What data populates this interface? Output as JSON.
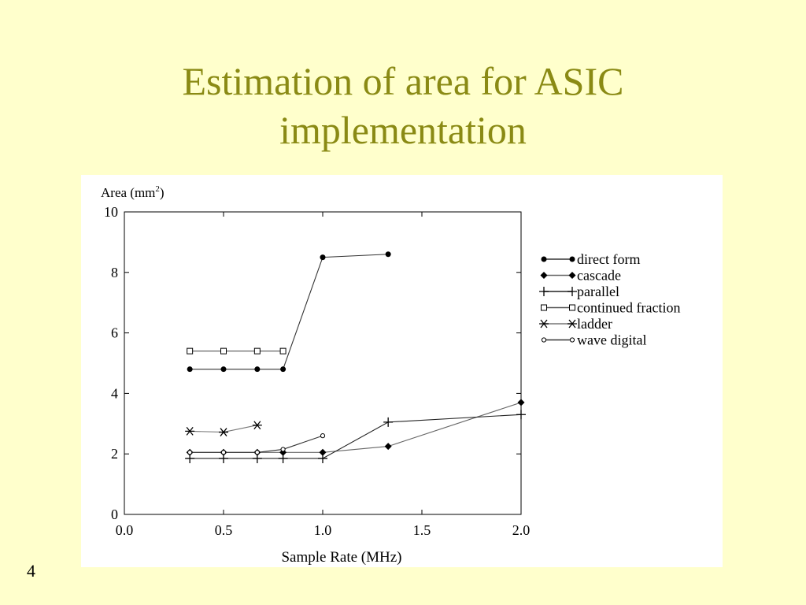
{
  "slide": {
    "title_line1": "Estimation of area for ASIC",
    "title_line2": "implementation",
    "page_number": "4",
    "title_color": "#8a8a14",
    "background_color": "#ffffcc"
  },
  "chart_data": {
    "type": "line",
    "title": "",
    "xlabel": "Sample Rate (MHz)",
    "ylabel": "Area (mm",
    "ylabel_superscript": "2",
    "ylabel_suffix": ")",
    "xlim": [
      0,
      2
    ],
    "ylim": [
      0,
      10
    ],
    "xticks": [
      0,
      0.5,
      1,
      1.5,
      2
    ],
    "xtick_labels": [
      "0.0",
      "0.5",
      "1.0",
      "1.5",
      "2.0"
    ],
    "yticks": [
      0,
      2,
      4,
      6,
      8,
      10
    ],
    "ytick_labels": [
      "0",
      "2",
      "4",
      "6",
      "8",
      "10"
    ],
    "grid": false,
    "legend_position": "right",
    "series": [
      {
        "name": "direct form",
        "marker": "filled-circle",
        "color": "#333333",
        "x": [
          0.33,
          0.5,
          0.67,
          0.8,
          1.0,
          1.33
        ],
        "y": [
          4.8,
          4.8,
          4.8,
          4.8,
          8.5,
          8.6
        ]
      },
      {
        "name": "cascade",
        "marker": "filled-diamond",
        "color": "#666666",
        "x": [
          0.33,
          0.5,
          0.67,
          0.8,
          1.0,
          1.33,
          2.0
        ],
        "y": [
          2.05,
          2.05,
          2.05,
          2.05,
          2.05,
          2.25,
          3.7
        ]
      },
      {
        "name": "parallel",
        "marker": "plus",
        "color": "#222222",
        "x": [
          0.33,
          0.5,
          0.67,
          0.8,
          1.0,
          1.33,
          2.0
        ],
        "y": [
          1.85,
          1.85,
          1.85,
          1.85,
          1.85,
          3.05,
          3.3
        ]
      },
      {
        "name": "continued fraction",
        "marker": "open-square",
        "color": "#555555",
        "x": [
          0.33,
          0.5,
          0.67,
          0.8
        ],
        "y": [
          5.4,
          5.4,
          5.4,
          5.4
        ]
      },
      {
        "name": "ladder",
        "marker": "asterisk",
        "color": "#777777",
        "x": [
          0.33,
          0.5,
          0.67
        ],
        "y": [
          2.75,
          2.72,
          2.95
        ]
      },
      {
        "name": "wave digital",
        "marker": "open-circle",
        "color": "#333333",
        "x": [
          0.33,
          0.5,
          0.67,
          0.8,
          1.0
        ],
        "y": [
          2.05,
          2.05,
          2.05,
          2.15,
          2.6
        ]
      }
    ]
  }
}
